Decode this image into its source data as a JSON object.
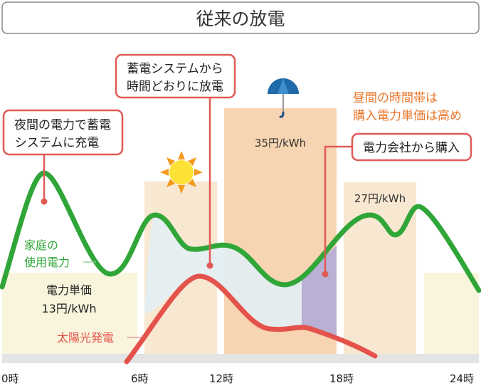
{
  "title": "従来の放電",
  "callouts": {
    "night_charge": [
      "夜間の電力で蓄電",
      "システムに充電"
    ],
    "scheduled_discharge": [
      "蓄電システムから",
      "時間どおりに放電"
    ],
    "purchase": "電力会社から購入"
  },
  "note": [
    "昼間の時間帯は",
    "購入電力単価は高め"
  ],
  "prices": {
    "night_label": "電力単価",
    "night": "13円/kWh",
    "peak": "35円/kWh",
    "evening": "27円/kWh"
  },
  "series_labels": {
    "household": [
      "家庭の",
      "使用電力"
    ],
    "solar": "太陽光発電"
  },
  "x_axis": [
    "0時",
    "6時",
    "12時",
    "18時",
    "24時"
  ],
  "icons": [
    "sun-icon",
    "umbrella-icon"
  ],
  "colors": {
    "household": "#2fa637",
    "solar": "#e4524c",
    "callout_border": "#e05a55",
    "note": "#e8772a",
    "night_band": "#f8f5dc",
    "day_band": "#f8e7d1",
    "peak_band": "#f7d5b2",
    "self_consumption": "#e2eef3",
    "purchased": "#b9b0d3"
  }
}
